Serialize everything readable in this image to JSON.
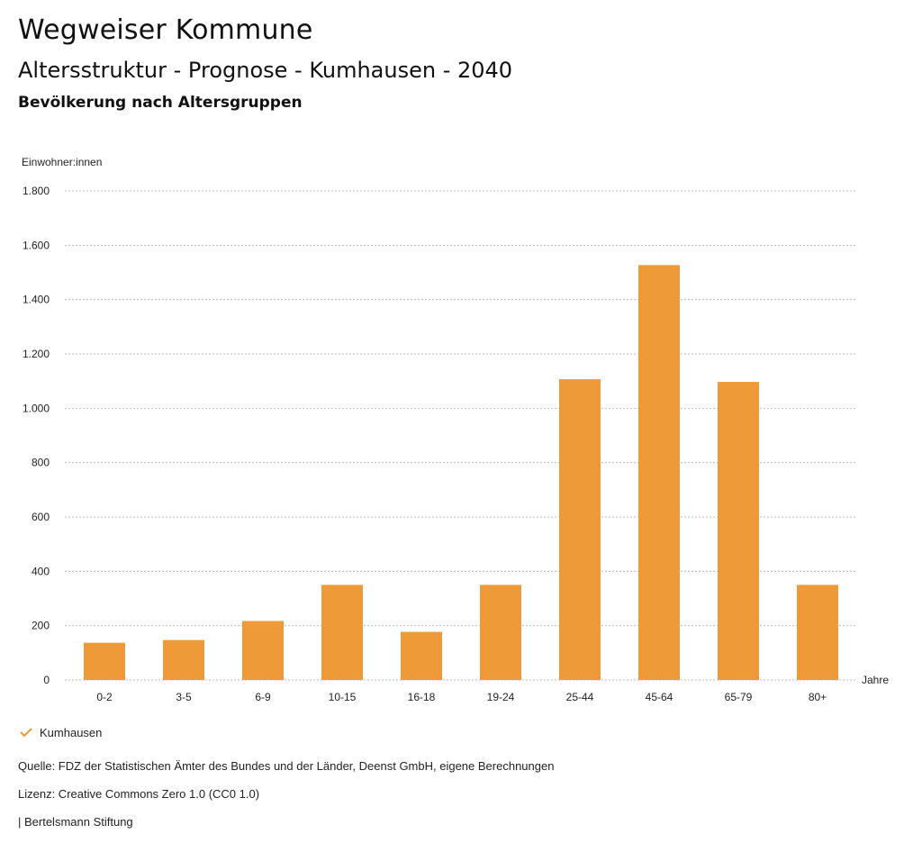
{
  "header": {
    "title": "Wegweiser Kommune",
    "subtitle": "Altersstruktur - Prognose - Kumhausen - 2040",
    "section": "Bevölkerung nach Altersgruppen"
  },
  "colors": {
    "bar": "#ee9a38",
    "grid": "#bbbbbb"
  },
  "chart_data": {
    "type": "bar",
    "ylabel": "Einwohner:innen",
    "xlabel": "Jahre",
    "ylim": [
      0,
      1800
    ],
    "yticks": [
      0,
      200,
      400,
      600,
      800,
      1000,
      1200,
      1400,
      1600,
      1800
    ],
    "ytick_labels": [
      "0",
      "200",
      "400",
      "600",
      "800",
      "1.000",
      "1.200",
      "1.400",
      "1.600",
      "1.800"
    ],
    "grid": true,
    "categories": [
      "0-2",
      "3-5",
      "6-9",
      "10-15",
      "16-18",
      "19-24",
      "25-44",
      "45-64",
      "65-79",
      "80+"
    ],
    "series": [
      {
        "name": "Kumhausen",
        "values": [
          137,
          147,
          217,
          350,
          177,
          350,
          1107,
          1527,
          1097,
          350
        ]
      }
    ],
    "legend_position": "bottom-left"
  },
  "legend": {
    "label": "Kumhausen"
  },
  "footer": {
    "source": "Quelle: FDZ der Statistischen Ämter des Bundes und der Länder, Deenst GmbH, eigene Berechnungen",
    "license": "Lizenz: Creative Commons Zero 1.0 (CC0 1.0)",
    "publisher": "| Bertelsmann Stiftung"
  }
}
